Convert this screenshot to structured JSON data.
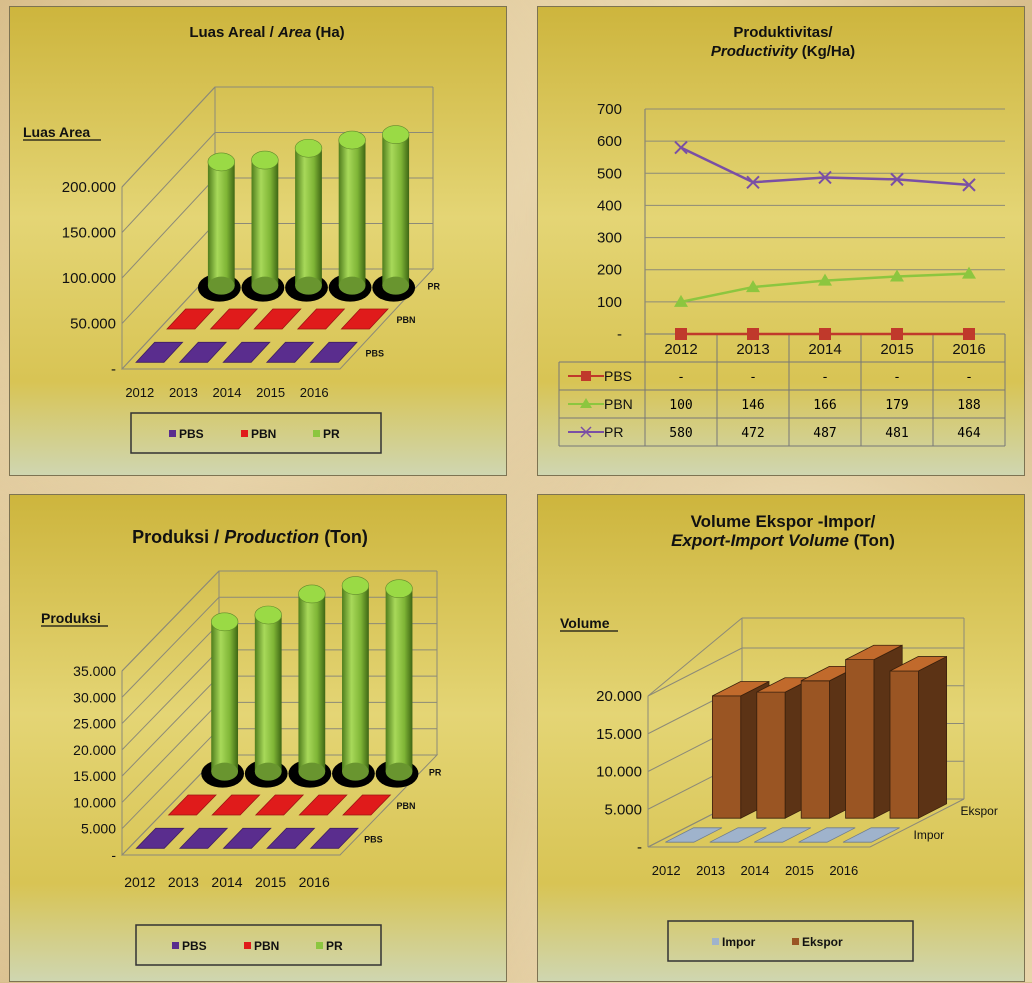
{
  "colors": {
    "pbs": "#5a2d8e",
    "pbn": "#e01b1b",
    "pr": "#8cc63f",
    "impor": "#9fb3cc",
    "ekspor": "#9a5523"
  },
  "chart_data": [
    {
      "id": "area",
      "type": "bar",
      "title": "Luas Areal / ",
      "title_italic": "Area",
      "title_suffix": " (Ha)",
      "ylabel": "Luas Area",
      "categories": [
        "2012",
        "2013",
        "2014",
        "2015",
        "2016"
      ],
      "y_ticks": [
        "-",
        "50.000",
        "100.000",
        "150.000",
        "200.000"
      ],
      "ylim": [
        0,
        200000
      ],
      "series": [
        {
          "name": "PBS",
          "values": [
            0,
            0,
            0,
            0,
            0
          ]
        },
        {
          "name": "PBN",
          "values": [
            0,
            0,
            0,
            0,
            0
          ]
        },
        {
          "name": "PR",
          "values": [
            136000,
            138000,
            151000,
            160000,
            166000
          ]
        }
      ],
      "legend": [
        "PBS",
        "PBN",
        "PR"
      ]
    },
    {
      "id": "productivity",
      "type": "line",
      "title_line1": "Produktivitas/",
      "title_italic": "Productivity",
      "title_suffix": " (Kg/Ha)",
      "categories": [
        "2012",
        "2013",
        "2014",
        "2015",
        "2016"
      ],
      "y_ticks": [
        "-",
        "100",
        "200",
        "300",
        "400",
        "500",
        "600",
        "700"
      ],
      "ylim": [
        0,
        700
      ],
      "series": [
        {
          "name": "PBS",
          "values": [
            0,
            0,
            0,
            0,
            0
          ],
          "labels": [
            "-",
            "-",
            "-",
            "-",
            "-"
          ]
        },
        {
          "name": "PBN",
          "values": [
            100,
            146,
            166,
            179,
            188
          ],
          "labels": [
            "100",
            "146",
            "166",
            "179",
            "188"
          ]
        },
        {
          "name": "PR",
          "values": [
            580,
            472,
            487,
            481,
            464
          ],
          "labels": [
            "580",
            "472",
            "487",
            "481",
            "464"
          ]
        }
      ]
    },
    {
      "id": "production",
      "type": "bar",
      "title": "Produksi / ",
      "title_italic": "Production",
      "title_suffix": " (Ton)",
      "ylabel": "Produksi",
      "categories": [
        "2012",
        "2013",
        "2014",
        "2015",
        "2016"
      ],
      "y_ticks": [
        "-",
        "5.000",
        "10.000",
        "15.000",
        "20.000",
        "25.000",
        "30.000",
        "35.000"
      ],
      "ylim": [
        0,
        35000
      ],
      "series": [
        {
          "name": "PBS",
          "values": [
            0,
            0,
            0,
            0,
            0
          ]
        },
        {
          "name": "PBN",
          "values": [
            0,
            0,
            0,
            0,
            0
          ]
        },
        {
          "name": "PR",
          "values": [
            28500,
            29800,
            33800,
            35400,
            34800
          ]
        }
      ],
      "legend": [
        "PBS",
        "PBN",
        "PR"
      ]
    },
    {
      "id": "trade",
      "type": "bar",
      "title_line1": "Volume Ekspor -Impor/",
      "title_italic": "Export-Import Volume",
      "title_suffix": " (Ton)",
      "ylabel": "Volume",
      "categories": [
        "2012",
        "2013",
        "2014",
        "2015",
        "2016"
      ],
      "y_ticks": [
        "-",
        "5.000",
        "10.000",
        "15.000",
        "20.000"
      ],
      "ylim": [
        0,
        20000
      ],
      "series": [
        {
          "name": "Impor",
          "values": [
            0,
            0,
            0,
            0,
            0
          ]
        },
        {
          "name": "Ekspor",
          "values": [
            16200,
            16700,
            18200,
            21000,
            19500
          ]
        }
      ],
      "legend": [
        "Impor",
        "Ekspor"
      ]
    }
  ]
}
